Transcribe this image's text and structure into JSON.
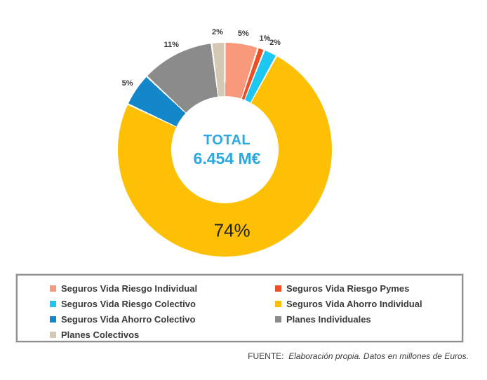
{
  "chart_data": {
    "type": "pie",
    "subtype": "donut",
    "direction": "clockwise",
    "start_angle_deg": 0,
    "legend_position": "bottom",
    "center": {
      "title": "TOTAL",
      "value": "6.454 M€"
    },
    "center_text_color": "#2aa9e0",
    "slices": [
      {
        "label": "Seguros Vida Riesgo Individual",
        "value_pct": 5,
        "data_label": "5%",
        "color": "#f9997b"
      },
      {
        "label": "Seguros Vida Riesgo Pymes",
        "value_pct": 1,
        "data_label": "1%",
        "color": "#ee4e23"
      },
      {
        "label": "Seguros Vida Riesgo Colectivo",
        "value_pct": 2,
        "data_label": "2%",
        "color": "#1ec6f2"
      },
      {
        "label": "Seguros Vida Ahorro Individual",
        "value_pct": 74,
        "data_label": "74%",
        "color": "#fdc005"
      },
      {
        "label": "Seguros Vida Ahorro Colectivo",
        "value_pct": 5,
        "data_label": "5%",
        "color": "#1387c9"
      },
      {
        "label": "Planes Individuales",
        "value_pct": 11,
        "data_label": "11%",
        "color": "#8b8b8b"
      },
      {
        "label": "Planes Colectivos",
        "value_pct": 2,
        "data_label": "2%",
        "color": "#d4c9b4"
      }
    ]
  },
  "footer": {
    "prefix": "FUENTE:",
    "note": "Elaboración propia. Datos en millones de Euros."
  }
}
